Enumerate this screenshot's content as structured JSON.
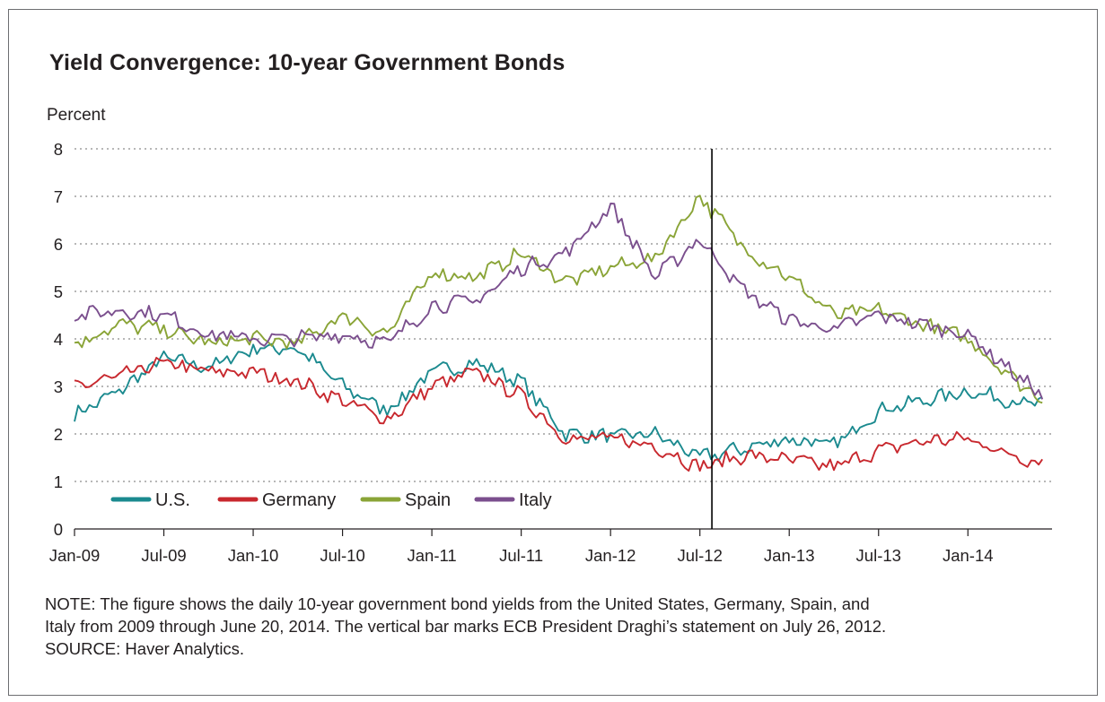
{
  "chart_data": {
    "type": "line",
    "title": "Yield Convergence: 10-year Government Bonds",
    "ylabel": "Percent",
    "xlabel": "",
    "ylim": [
      0,
      8
    ],
    "yticks": [
      0,
      1,
      2,
      3,
      4,
      5,
      6,
      7,
      8
    ],
    "x_tick_labels": [
      "Jan-09",
      "Jul-09",
      "Jan-10",
      "Jul-10",
      "Jan-11",
      "Jul-11",
      "Jan-12",
      "Jul-12",
      "Jan-13",
      "Jul-13",
      "Jan-14"
    ],
    "x_range": [
      "2009-01",
      "2014-06"
    ],
    "grid": "horizontal dotted",
    "legend_position": "bottom-left",
    "vertical_marker": {
      "date": "2012-07-26"
    },
    "x": [
      "2009-01",
      "2009-04",
      "2009-07",
      "2009-10",
      "2010-01",
      "2010-04",
      "2010-07",
      "2010-10",
      "2011-01",
      "2011-04",
      "2011-07",
      "2011-10",
      "2012-01",
      "2012-04",
      "2012-07",
      "2012-10",
      "2013-01",
      "2013-04",
      "2013-07",
      "2013-10",
      "2014-01",
      "2014-04",
      "2014-06"
    ],
    "series": [
      {
        "name": "U.S.",
        "color": "#1b8a8f",
        "values": [
          2.4,
          2.9,
          3.6,
          3.4,
          3.8,
          3.8,
          3.0,
          2.5,
          3.3,
          3.5,
          3.1,
          2.0,
          1.95,
          2.0,
          1.5,
          1.7,
          1.9,
          1.75,
          2.5,
          2.7,
          2.9,
          2.7,
          2.6
        ]
      },
      {
        "name": "Germany",
        "color": "#c8282e",
        "values": [
          3.0,
          3.2,
          3.5,
          3.3,
          3.3,
          3.1,
          2.7,
          2.3,
          3.0,
          3.3,
          2.8,
          1.9,
          1.9,
          1.75,
          1.3,
          1.55,
          1.45,
          1.3,
          1.65,
          1.85,
          1.9,
          1.55,
          1.4
        ]
      },
      {
        "name": "Spain",
        "color": "#8aa437",
        "values": [
          3.9,
          4.3,
          4.2,
          3.9,
          4.0,
          3.9,
          4.5,
          4.1,
          5.4,
          5.3,
          5.8,
          5.2,
          5.5,
          5.7,
          7.0,
          5.9,
          5.3,
          4.5,
          4.6,
          4.3,
          4.0,
          3.2,
          2.7
        ]
      },
      {
        "name": "Italy",
        "color": "#7b4f8e",
        "values": [
          4.5,
          4.6,
          4.5,
          4.1,
          4.0,
          4.0,
          4.1,
          3.9,
          4.7,
          4.8,
          5.5,
          5.8,
          6.8,
          5.3,
          6.1,
          5.0,
          4.4,
          4.2,
          4.5,
          4.3,
          4.1,
          3.3,
          2.8
        ]
      }
    ]
  },
  "note": {
    "line1": "NOTE: The figure shows the daily 10-year government bond yields from the United States, Germany, Spain, and",
    "line2": "Italy from 2009 through June 20, 2014. The vertical bar marks ECB President Draghi’s statement on July 26, 2012.",
    "line3": "SOURCE: Haver Analytics."
  }
}
